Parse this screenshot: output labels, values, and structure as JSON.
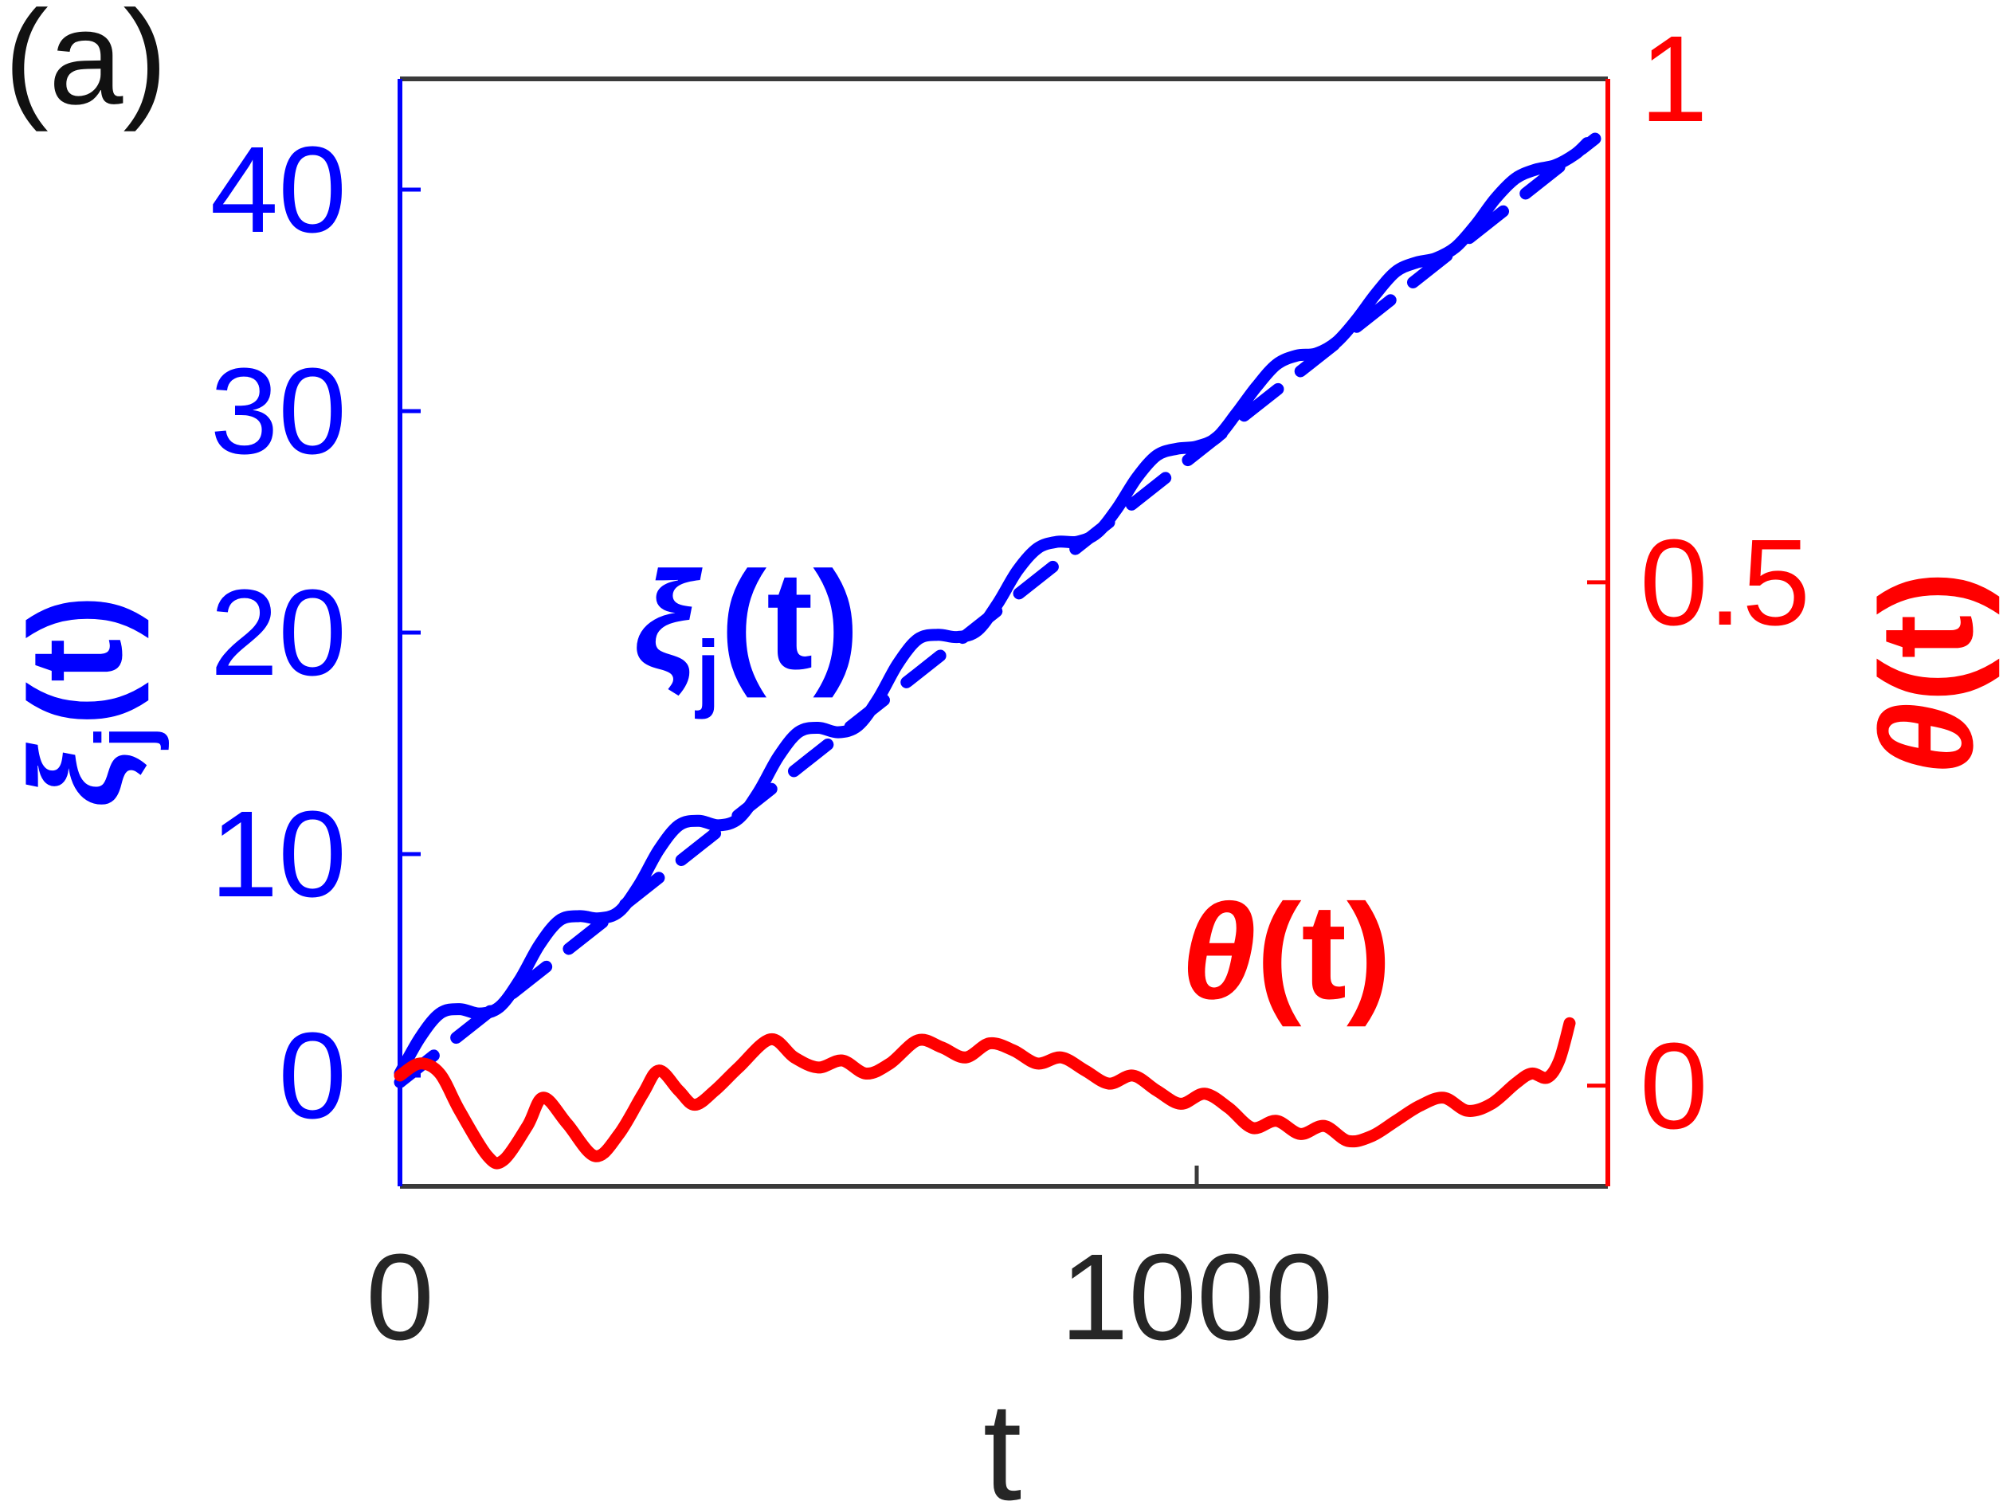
{
  "panel_label": "(a)",
  "colors": {
    "blue": "#0000ff",
    "red": "#ff0000",
    "axis_dark": "#3a3a3a",
    "text_dark": "#262626"
  },
  "left_axis": {
    "symbol": "ξ",
    "subscript": "j",
    "args": "(t)",
    "tick_labels": [
      "0",
      "10",
      "20",
      "30",
      "40"
    ]
  },
  "right_axis": {
    "symbol": "θ",
    "args": "(t)",
    "tick_labels": [
      "0",
      "0.5",
      "1"
    ]
  },
  "x_axis": {
    "label": "t",
    "tick_labels": [
      "0",
      "1000"
    ]
  },
  "annotations": {
    "xi_symbol": "ξ",
    "xi_subscript": "j",
    "xi_args": "(t)",
    "theta_symbol": "θ",
    "theta_args": "(t)"
  },
  "chart_data": {
    "type": "line",
    "title": "",
    "xlabel": "t",
    "ylabel_left": "xi_j(t)",
    "ylabel_right": "theta(t)",
    "xlim": [
      0,
      1516
    ],
    "ylim_left": [
      -5,
      45
    ],
    "ylim_right": [
      -0.1,
      1.0
    ],
    "x_ticks": [
      0,
      1000
    ],
    "left_ticks": [
      0,
      10,
      20,
      30,
      40
    ],
    "right_ticks": [
      0,
      0.5,
      1
    ],
    "grid": false,
    "legend": "none",
    "series": [
      {
        "name": "xi_j_dashed_linear",
        "axis": "left",
        "color": "#0000ff",
        "style": "dashed",
        "points": [
          [
            0,
            -0.3
          ],
          [
            1500,
            42.3
          ]
        ]
      },
      {
        "name": "xi_j_solid",
        "axis": "left",
        "color": "#0000ff",
        "style": "solid",
        "points": [
          [
            0,
            0.1
          ],
          [
            25,
            1.7
          ],
          [
            50,
            2.8
          ],
          [
            75,
            3.0
          ],
          [
            100,
            2.8
          ],
          [
            125,
            3.1
          ],
          [
            150,
            4.3
          ],
          [
            175,
            5.9
          ],
          [
            200,
            7.0
          ],
          [
            225,
            7.2
          ],
          [
            250,
            7.1
          ],
          [
            275,
            7.4
          ],
          [
            300,
            8.6
          ],
          [
            325,
            10.2
          ],
          [
            350,
            11.3
          ],
          [
            375,
            11.5
          ],
          [
            400,
            11.3
          ],
          [
            425,
            11.6
          ],
          [
            450,
            12.8
          ],
          [
            475,
            14.4
          ],
          [
            500,
            15.5
          ],
          [
            525,
            15.7
          ],
          [
            550,
            15.5
          ],
          [
            575,
            15.8
          ],
          [
            600,
            17.0
          ],
          [
            625,
            18.6
          ],
          [
            650,
            19.7
          ],
          [
            675,
            19.9
          ],
          [
            700,
            19.8
          ],
          [
            725,
            20.1
          ],
          [
            750,
            21.3
          ],
          [
            775,
            22.8
          ],
          [
            800,
            23.8
          ],
          [
            825,
            24.1
          ],
          [
            850,
            24.1
          ],
          [
            875,
            24.5
          ],
          [
            900,
            25.6
          ],
          [
            925,
            27.0
          ],
          [
            950,
            28.0
          ],
          [
            975,
            28.3
          ],
          [
            1000,
            28.4
          ],
          [
            1025,
            28.8
          ],
          [
            1050,
            29.9
          ],
          [
            1075,
            31.1
          ],
          [
            1100,
            32.1
          ],
          [
            1125,
            32.5
          ],
          [
            1150,
            32.6
          ],
          [
            1175,
            33.1
          ],
          [
            1200,
            34.1
          ],
          [
            1225,
            35.3
          ],
          [
            1250,
            36.3
          ],
          [
            1275,
            36.7
          ],
          [
            1300,
            36.9
          ],
          [
            1325,
            37.4
          ],
          [
            1350,
            38.4
          ],
          [
            1375,
            39.6
          ],
          [
            1400,
            40.5
          ],
          [
            1425,
            40.9
          ],
          [
            1450,
            41.1
          ],
          [
            1475,
            41.6
          ],
          [
            1490,
            42.1
          ]
        ]
      },
      {
        "name": "theta",
        "axis": "right",
        "color": "#ff0000",
        "style": "solid",
        "points": [
          [
            0,
            0.01
          ],
          [
            25,
            0.022
          ],
          [
            50,
            0.012
          ],
          [
            75,
            -0.025
          ],
          [
            110,
            -0.07
          ],
          [
            130,
            -0.074
          ],
          [
            160,
            -0.04
          ],
          [
            180,
            -0.012
          ],
          [
            210,
            -0.038
          ],
          [
            245,
            -0.07
          ],
          [
            275,
            -0.048
          ],
          [
            305,
            -0.008
          ],
          [
            325,
            0.015
          ],
          [
            350,
            -0.005
          ],
          [
            370,
            -0.019
          ],
          [
            395,
            -0.005
          ],
          [
            425,
            0.018
          ],
          [
            465,
            0.046
          ],
          [
            495,
            0.028
          ],
          [
            525,
            0.018
          ],
          [
            555,
            0.025
          ],
          [
            585,
            0.012
          ],
          [
            615,
            0.022
          ],
          [
            650,
            0.045
          ],
          [
            680,
            0.038
          ],
          [
            710,
            0.028
          ],
          [
            740,
            0.042
          ],
          [
            770,
            0.035
          ],
          [
            800,
            0.022
          ],
          [
            830,
            0.028
          ],
          [
            860,
            0.015
          ],
          [
            890,
            0.002
          ],
          [
            920,
            0.01
          ],
          [
            950,
            -0.005
          ],
          [
            980,
            -0.018
          ],
          [
            1010,
            -0.008
          ],
          [
            1040,
            -0.022
          ],
          [
            1070,
            -0.042
          ],
          [
            1100,
            -0.035
          ],
          [
            1130,
            -0.048
          ],
          [
            1160,
            -0.04
          ],
          [
            1190,
            -0.055
          ],
          [
            1220,
            -0.05
          ],
          [
            1250,
            -0.035
          ],
          [
            1280,
            -0.02
          ],
          [
            1310,
            -0.012
          ],
          [
            1340,
            -0.025
          ],
          [
            1370,
            -0.018
          ],
          [
            1400,
            0.002
          ],
          [
            1420,
            0.012
          ],
          [
            1440,
            0.008
          ],
          [
            1455,
            0.025
          ],
          [
            1468,
            0.062
          ]
        ]
      }
    ]
  }
}
